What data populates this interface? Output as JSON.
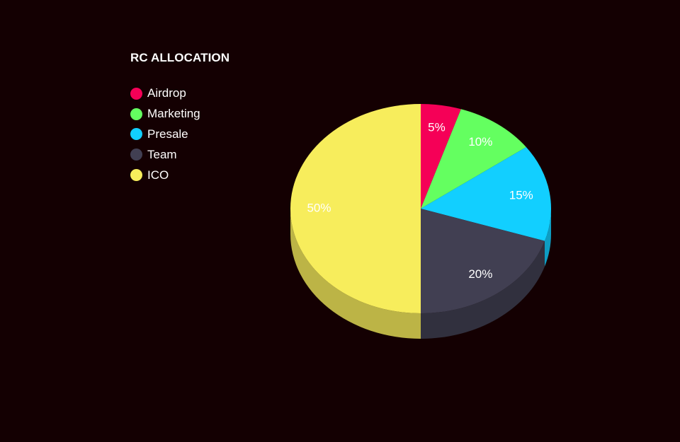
{
  "chart_data": {
    "type": "pie",
    "title": "RC ALLOCATION",
    "categories": [
      "Airdrop",
      "Marketing",
      "Presale",
      "Team",
      "ICO"
    ],
    "values": [
      5,
      10,
      15,
      20,
      50
    ],
    "labels": [
      "5%",
      "10%",
      "15%",
      "20%",
      "50%"
    ],
    "colors": [
      "#f50057",
      "#64ff60",
      "#12cfff",
      "#413f52",
      "#f7ed5c"
    ],
    "legend_position": "top-left",
    "style": "3d"
  }
}
